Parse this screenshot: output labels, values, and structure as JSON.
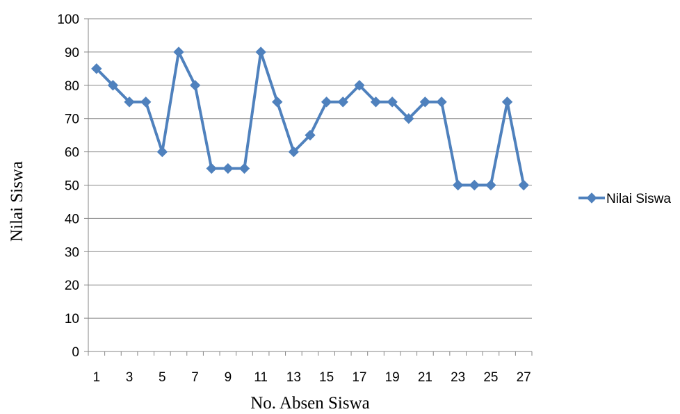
{
  "chart_data": {
    "type": "line",
    "x": [
      1,
      2,
      3,
      4,
      5,
      6,
      7,
      8,
      9,
      10,
      11,
      12,
      13,
      14,
      15,
      16,
      17,
      18,
      19,
      20,
      21,
      22,
      23,
      24,
      25,
      26,
      27
    ],
    "x_tick_labels": [
      "1",
      "3",
      "5",
      "7",
      "9",
      "11",
      "13",
      "15",
      "17",
      "19",
      "21",
      "23",
      "25",
      "27"
    ],
    "series": [
      {
        "name": "Nilai Siswa",
        "color": "#4f81bd",
        "marker": "diamond",
        "values": [
          85,
          80,
          75,
          75,
          60,
          90,
          80,
          55,
          55,
          55,
          90,
          75,
          60,
          65,
          75,
          75,
          80,
          75,
          75,
          70,
          75,
          75,
          50,
          50,
          50,
          75,
          50
        ]
      }
    ],
    "xlabel": "No. Absen Siswa",
    "ylabel": "Nilai Siswa",
    "ylim": [
      0,
      100
    ],
    "y_ticks": [
      0,
      10,
      20,
      30,
      40,
      50,
      60,
      70,
      80,
      90,
      100
    ],
    "grid": true,
    "legend": "right"
  }
}
